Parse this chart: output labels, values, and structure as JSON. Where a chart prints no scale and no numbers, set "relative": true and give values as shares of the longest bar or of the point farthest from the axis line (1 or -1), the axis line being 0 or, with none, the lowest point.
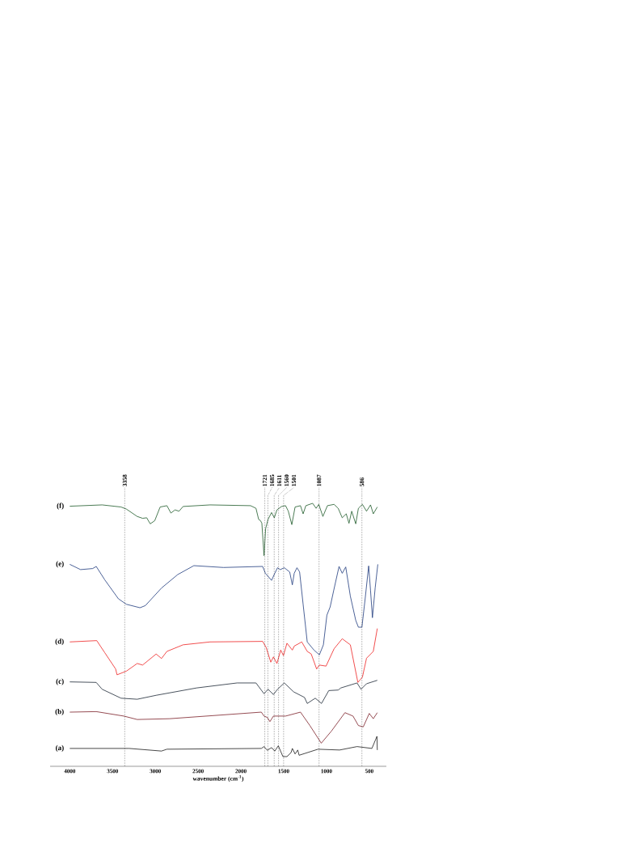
{
  "chart_data": {
    "type": "line",
    "relative": true,
    "xlabel": "wavenumber (cm$^{-1}$)",
    "xlim": [
      4230,
      300
    ],
    "xticks": [
      4000,
      3500,
      3000,
      2500,
      2000,
      1500,
      1000,
      500
    ],
    "grid": false,
    "legend": false,
    "marker": "none",
    "line_style": "solid",
    "ref_lines": [
      {
        "axis": "x",
        "value": 3358,
        "label": "3358",
        "color": "#000000",
        "line_style": "dotted"
      },
      {
        "axis": "x",
        "value": 1721,
        "label": "1721",
        "color": "#000000",
        "line_style": "dotted"
      },
      {
        "axis": "x",
        "value": 1685,
        "label": "1685",
        "color": "#000000",
        "line_style": "dotted"
      },
      {
        "axis": "x",
        "value": 1611,
        "label": "1611",
        "color": "#000000",
        "line_style": "dotted"
      },
      {
        "axis": "x",
        "value": 1560,
        "label": "1560",
        "color": "#000000",
        "line_style": "dotted"
      },
      {
        "axis": "x",
        "value": 1501,
        "label": "1501",
        "color": "#000000",
        "line_style": "dotted"
      },
      {
        "axis": "x",
        "value": 1087,
        "label": "1087",
        "color": "#000000",
        "line_style": "dotted"
      },
      {
        "axis": "x",
        "value": 586,
        "label": "586",
        "color": "#000000",
        "line_style": "dotted"
      }
    ],
    "series": [
      {
        "name": "(f)",
        "color": "#1e5b2a",
        "x": [
          4000,
          3622,
          3401,
          3338,
          3212,
          3149,
          3101,
          3060,
          3007,
          2944,
          2865,
          2818,
          2770,
          2723,
          2676,
          2360,
          1887,
          1824,
          1793,
          1771,
          1755,
          1730,
          1711,
          1683,
          1642,
          1610,
          1579,
          1525,
          1478,
          1446,
          1405,
          1367,
          1304,
          1273,
          1241,
          1162,
          1121,
          1090,
          1042,
          989,
          911,
          863,
          816,
          769,
          737,
          705,
          658,
          627,
          580,
          532,
          485,
          453,
          406
        ],
        "values": [
          0.989,
          0.994,
          0.986,
          0.978,
          0.95,
          0.943,
          0.945,
          0.922,
          0.934,
          0.986,
          0.991,
          0.963,
          0.975,
          0.97,
          0.988,
          0.994,
          0.991,
          0.981,
          0.939,
          0.934,
          0.924,
          0.801,
          0.904,
          0.939,
          0.965,
          0.945,
          0.975,
          0.988,
          0.991,
          0.97,
          0.919,
          0.986,
          0.991,
          0.96,
          0.991,
          1.0,
          0.981,
          0.996,
          0.95,
          0.991,
          0.996,
          0.981,
          0.945,
          0.96,
          0.924,
          0.97,
          0.922,
          0.981,
          0.996,
          0.97,
          0.994,
          0.96,
          0.986
        ]
      },
      {
        "name": "(e)",
        "color": "#1f3b7e",
        "x": [
          4000,
          3874,
          3732,
          3691,
          3591,
          3432,
          3338,
          3180,
          3117,
          2928,
          2739,
          2550,
          2203,
          1746,
          1714,
          1642,
          1604,
          1572,
          1541,
          1493,
          1430,
          1399,
          1377,
          1345,
          1314,
          1273,
          1225,
          1146,
          1083,
          1036,
          995,
          957,
          916,
          853,
          816,
          775,
          721,
          658,
          627,
          586,
          548,
          507,
          485,
          463,
          431,
          400
        ],
        "values": [
          0.768,
          0.748,
          0.752,
          0.76,
          0.709,
          0.637,
          0.616,
          0.603,
          0.611,
          0.678,
          0.729,
          0.763,
          0.756,
          0.76,
          0.734,
          0.707,
          0.734,
          0.755,
          0.748,
          0.755,
          0.739,
          0.69,
          0.734,
          0.755,
          0.739,
          0.616,
          0.473,
          0.442,
          0.424,
          0.462,
          0.575,
          0.606,
          0.668,
          0.76,
          0.734,
          0.758,
          0.647,
          0.555,
          0.529,
          0.529,
          0.637,
          0.762,
          0.668,
          0.565,
          0.678,
          0.768
        ]
      },
      {
        "name": "(d)",
        "color": "#ee2222",
        "x": [
          4000,
          3685,
          3591,
          3464,
          3448,
          3338,
          3212,
          3149,
          2991,
          2928,
          2865,
          2676,
          2360,
          1746,
          1705,
          1651,
          1620,
          1579,
          1535,
          1503,
          1462,
          1399,
          1377,
          1289,
          1225,
          1178,
          1115,
          1083,
          1005,
          911,
          816,
          721,
          633,
          580,
          532,
          453,
          406
        ],
        "values": [
          0.473,
          0.478,
          0.432,
          0.37,
          0.348,
          0.362,
          0.391,
          0.385,
          0.427,
          0.41,
          0.437,
          0.462,
          0.473,
          0.475,
          0.452,
          0.396,
          0.416,
          0.391,
          0.442,
          0.421,
          0.468,
          0.442,
          0.457,
          0.473,
          0.437,
          0.427,
          0.37,
          0.385,
          0.381,
          0.447,
          0.485,
          0.462,
          0.319,
          0.339,
          0.411,
          0.437,
          0.524
        ]
      },
      {
        "name": "(c)",
        "color": "#1c2735",
        "x": [
          4000,
          3691,
          3622,
          3401,
          3212,
          2991,
          2518,
          2045,
          1824,
          1730,
          1683,
          1620,
          1572,
          1493,
          1383,
          1257,
          1225,
          1131,
          1058,
          973,
          863,
          832,
          643,
          596,
          532,
          406
        ],
        "values": [
          0.321,
          0.319,
          0.293,
          0.259,
          0.255,
          0.27,
          0.298,
          0.317,
          0.317,
          0.276,
          0.293,
          0.273,
          0.293,
          0.317,
          0.283,
          0.262,
          0.239,
          0.259,
          0.239,
          0.288,
          0.29,
          0.298,
          0.317,
          0.293,
          0.314,
          0.327
        ]
      },
      {
        "name": "(b)",
        "color": "#7b1f28",
        "x": [
          4000,
          3691,
          3369,
          3212,
          2833,
          1761,
          1730,
          1692,
          1661,
          1620,
          1478,
          1304,
          1194,
          1061,
          942,
          784,
          690,
          627,
          570,
          500,
          453,
          406
        ],
        "values": [
          0.206,
          0.208,
          0.191,
          0.178,
          0.181,
          0.206,
          0.191,
          0.186,
          0.17,
          0.191,
          0.191,
          0.206,
          0.155,
          0.088,
          0.134,
          0.204,
          0.191,
          0.155,
          0.15,
          0.201,
          0.181,
          0.204
        ]
      },
      {
        "name": "(a)",
        "color": "#1a1a1a",
        "x": [
          4000,
          3306,
          2928,
          2865,
          1761,
          1730,
          1692,
          1642,
          1604,
          1563,
          1509,
          1462,
          1414,
          1399,
          1367,
          1336,
          1320,
          1099,
          847,
          643,
          469,
          410,
          406
        ],
        "values": [
          0.068,
          0.068,
          0.058,
          0.065,
          0.068,
          0.075,
          0.061,
          0.071,
          0.058,
          0.078,
          0.037,
          0.037,
          0.052,
          0.068,
          0.047,
          0.062,
          0.042,
          0.065,
          0.062,
          0.075,
          0.068,
          0.114,
          0.062
        ]
      }
    ]
  }
}
